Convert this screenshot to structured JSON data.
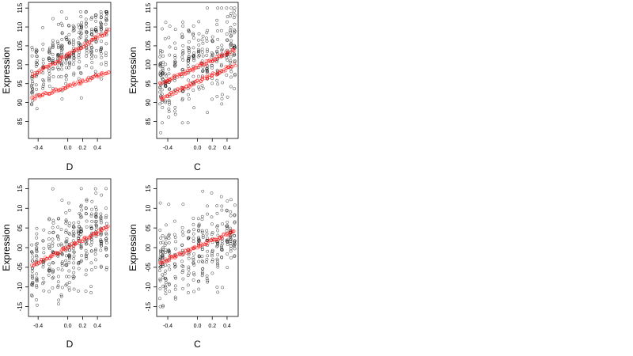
{
  "figure": {
    "panels": [
      {
        "id": "p1",
        "xlabel": "D",
        "ylabel": "Expression"
      },
      {
        "id": "p2",
        "xlabel": "C",
        "ylabel": "Expression"
      },
      {
        "id": "p3",
        "xlabel": "D",
        "ylabel": "Expression"
      },
      {
        "id": "p4",
        "xlabel": "C",
        "ylabel": "Expression"
      }
    ],
    "colors": {
      "observed": "#000000",
      "fitted": "#ff0000",
      "frame": "#000000",
      "background": "#ffffff"
    }
  },
  "chart_data": [
    {
      "type": "scatter",
      "title": "",
      "xlabel": "D",
      "ylabel": "Expression",
      "xlim": [
        -0.53,
        0.58
      ],
      "ylim": [
        80.5,
        116.5
      ],
      "xticks": [
        -0.4,
        0.0,
        0.2,
        0.4
      ],
      "xtick_labels": [
        "-0.4",
        "0.0",
        "0.2",
        "0.4"
      ],
      "yticks": [
        85,
        90,
        95,
        100,
        105,
        110,
        115
      ],
      "ytick_labels": [
        "85",
        "90",
        "95",
        "100",
        "105",
        "110",
        "115"
      ],
      "grid": false,
      "observed": {
        "style": "open circles",
        "x_columns": [
          -0.48,
          -0.42,
          -0.33,
          -0.25,
          -0.2,
          -0.13,
          -0.08,
          -0.02,
          0.02,
          0.08,
          0.15,
          0.18,
          0.25,
          0.32,
          0.38,
          0.45,
          0.52
        ],
        "mean_at_x": "103 + 11*x",
        "spread_y": [
          84,
          114
        ]
      },
      "fitted": {
        "style": "open circles (red)",
        "bands": [
          {
            "x": [
              -0.48,
              0.55
            ],
            "y": [
              91,
              98
            ]
          },
          {
            "x": [
              -0.48,
              0.55
            ],
            "y": [
              97,
              109
            ]
          }
        ]
      }
    },
    {
      "type": "scatter",
      "title": "",
      "xlabel": "C",
      "ylabel": "Expression",
      "xlim": [
        -0.55,
        0.55
      ],
      "ylim": [
        80.5,
        116.5
      ],
      "xticks": [
        -0.4,
        0.0,
        0.2,
        0.4
      ],
      "xtick_labels": [
        "-0.4",
        "0.0",
        "0.2",
        "0.4"
      ],
      "yticks": [
        85,
        90,
        95,
        100,
        105,
        110,
        115
      ],
      "ytick_labels": [
        "85",
        "90",
        "95",
        "100",
        "105",
        "110",
        "115"
      ],
      "grid": false,
      "observed": {
        "style": "open circles",
        "x_columns": [
          -0.5,
          -0.47,
          -0.43,
          -0.38,
          -0.3,
          -0.2,
          -0.12,
          -0.05,
          0.02,
          0.07,
          0.13,
          0.2,
          0.27,
          0.33,
          0.4,
          0.45,
          0.5
        ],
        "mean_at_x": "100.5 + 9*x",
        "spread_y": [
          82,
          115
        ]
      },
      "fitted": {
        "style": "open circles (red)",
        "bands": [
          {
            "x": [
              -0.5,
              0.5
            ],
            "y": [
              95,
              104
            ]
          },
          {
            "x": [
              -0.5,
              0.5
            ],
            "y": [
              91,
              100
            ]
          }
        ]
      }
    },
    {
      "type": "scatter",
      "title": "",
      "xlabel": "D",
      "ylabel": "Expression",
      "xlim": [
        -0.53,
        0.58
      ],
      "ylim": [
        -1.75,
        1.75
      ],
      "xticks": [
        -0.4,
        0.0,
        0.2,
        0.4
      ],
      "xtick_labels": [
        "-0.4",
        "0.0",
        "0.2",
        "0.4"
      ],
      "yticks": [
        -1.5,
        -1.0,
        -0.5,
        0.0,
        0.5,
        1.0,
        1.5
      ],
      "ytick_labels": [
        "-15",
        "-10",
        "-05",
        "00",
        "05",
        "10",
        "15"
      ],
      "grid": false,
      "observed": {
        "style": "open circles",
        "x_columns": [
          -0.48,
          -0.42,
          -0.33,
          -0.25,
          -0.2,
          -0.13,
          -0.08,
          -0.02,
          0.02,
          0.08,
          0.15,
          0.18,
          0.25,
          0.32,
          0.38,
          0.45,
          0.52
        ],
        "mean_at_x": "0.9*x",
        "spread_y": [
          -1.6,
          1.5
        ]
      },
      "fitted": {
        "style": "open circles (red)",
        "line": {
          "x": [
            -0.48,
            0.55
          ],
          "y": [
            -0.45,
            0.52
          ]
        }
      }
    },
    {
      "type": "scatter",
      "title": "",
      "xlabel": "C",
      "ylabel": "Expression",
      "xlim": [
        -0.55,
        0.55
      ],
      "ylim": [
        -1.75,
        1.75
      ],
      "xticks": [
        -0.4,
        0.0,
        0.2,
        0.4
      ],
      "xtick_labels": [
        "-0.4",
        "0.0",
        "0.2",
        "0.4"
      ],
      "yticks": [
        -1.5,
        -1.0,
        -0.5,
        0.0,
        0.5,
        1.0,
        1.5
      ],
      "ytick_labels": [
        "-15",
        "-10",
        "-05",
        "00",
        "05",
        "10",
        "15"
      ],
      "grid": false,
      "observed": {
        "style": "open circles",
        "x_columns": [
          -0.5,
          -0.47,
          -0.43,
          -0.38,
          -0.3,
          -0.2,
          -0.12,
          -0.05,
          0.02,
          0.07,
          0.13,
          0.2,
          0.27,
          0.33,
          0.4,
          0.45,
          0.5
        ],
        "mean_at_x": "0.75*x",
        "spread_y": [
          -1.5,
          1.6
        ]
      },
      "fitted": {
        "style": "open circles (red)",
        "line": {
          "x": [
            -0.5,
            0.5
          ],
          "y": [
            -0.38,
            0.42
          ]
        }
      }
    }
  ]
}
